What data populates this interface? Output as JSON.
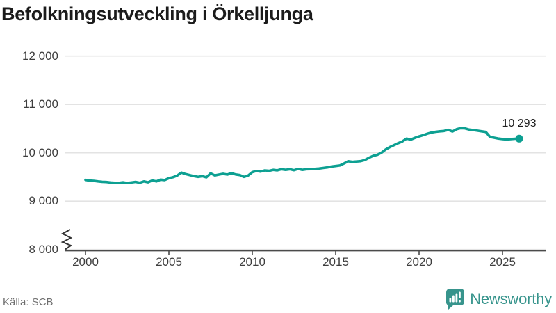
{
  "title": "Befolkningsutveckling i Örkelljunga",
  "source": "Källa: SCB",
  "brand": {
    "name": "Newsworthy"
  },
  "colors": {
    "line": "#0da092",
    "brand_teal": "#37948c",
    "grid": "#e3e3e3",
    "axis": "#4a4a4a",
    "title_text": "#1b1b1b",
    "label_text": "#3e3e3e",
    "source_text": "#6f6f6f"
  },
  "chart_data": {
    "type": "line",
    "title": "Befolkningsutveckling i Örkelljunga",
    "xlabel": "",
    "ylabel": "",
    "grid": true,
    "legend_position": "none",
    "axis_break_at_bottom": true,
    "ylim": [
      8000,
      12000
    ],
    "xlim": [
      2000,
      2026.6
    ],
    "ytick_values": [
      8000,
      9000,
      10000,
      11000,
      12000
    ],
    "ytick_labels": [
      "8 000",
      "9 000",
      "10 000",
      "11 000",
      "12 000"
    ],
    "xtick_values": [
      2000,
      2005,
      2010,
      2015,
      2020,
      2025
    ],
    "xtick_labels": [
      "2000",
      "2005",
      "2010",
      "2015",
      "2020",
      "2025"
    ],
    "last_point_label": "10 293",
    "last_point_value": 10293,
    "x": [
      2000,
      2000.25,
      2000.5,
      2000.75,
      2001,
      2001.25,
      2001.5,
      2001.75,
      2002,
      2002.25,
      2002.5,
      2002.75,
      2003,
      2003.25,
      2003.5,
      2003.75,
      2004,
      2004.25,
      2004.5,
      2004.75,
      2005,
      2005.25,
      2005.5,
      2005.75,
      2006,
      2006.25,
      2006.5,
      2006.75,
      2007,
      2007.25,
      2007.5,
      2007.75,
      2008,
      2008.25,
      2008.5,
      2008.75,
      2009,
      2009.25,
      2009.5,
      2009.75,
      2010,
      2010.25,
      2010.5,
      2010.75,
      2011,
      2011.25,
      2011.5,
      2011.75,
      2012,
      2012.25,
      2012.5,
      2012.75,
      2013,
      2013.25,
      2013.5,
      2013.75,
      2014,
      2014.25,
      2014.5,
      2014.75,
      2015,
      2015.25,
      2015.5,
      2015.75,
      2016,
      2016.25,
      2016.5,
      2016.75,
      2017,
      2017.25,
      2017.5,
      2017.75,
      2018,
      2018.25,
      2018.5,
      2018.75,
      2019,
      2019.25,
      2019.5,
      2019.75,
      2020,
      2020.25,
      2020.5,
      2020.75,
      2021,
      2021.25,
      2021.5,
      2021.75,
      2022,
      2022.25,
      2022.5,
      2022.75,
      2023,
      2023.25,
      2023.5,
      2023.75,
      2024,
      2024.25,
      2024.5,
      2024.75,
      2025,
      2025.25,
      2025.5,
      2025.75,
      2026
    ],
    "series": [
      {
        "name": "Befolkning",
        "values": [
          9440,
          9425,
          9420,
          9408,
          9400,
          9395,
          9385,
          9380,
          9378,
          9390,
          9375,
          9385,
          9398,
          9380,
          9408,
          9390,
          9428,
          9408,
          9445,
          9436,
          9475,
          9495,
          9530,
          9590,
          9560,
          9540,
          9518,
          9502,
          9516,
          9492,
          9575,
          9532,
          9550,
          9565,
          9550,
          9578,
          9552,
          9540,
          9502,
          9530,
          9600,
          9625,
          9612,
          9636,
          9628,
          9648,
          9638,
          9660,
          9648,
          9660,
          9640,
          9668,
          9648,
          9660,
          9662,
          9668,
          9675,
          9686,
          9698,
          9716,
          9726,
          9738,
          9780,
          9826,
          9813,
          9820,
          9828,
          9852,
          9898,
          9938,
          9960,
          10005,
          10070,
          10120,
          10160,
          10200,
          10236,
          10294,
          10274,
          10310,
          10340,
          10365,
          10395,
          10420,
          10435,
          10445,
          10452,
          10475,
          10440,
          10488,
          10510,
          10505,
          10480,
          10470,
          10458,
          10445,
          10432,
          10330,
          10312,
          10295,
          10285,
          10278,
          10285,
          10290,
          10293
        ]
      }
    ]
  }
}
